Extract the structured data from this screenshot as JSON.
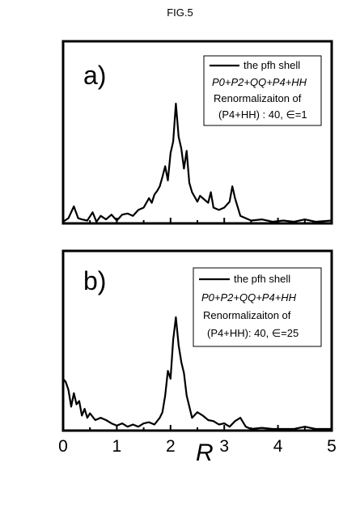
{
  "figure": {
    "title": "FIG.5"
  },
  "chart_data": [
    {
      "type": "line",
      "panel_label": "a)",
      "xlabel": "",
      "ylabel": "",
      "xlim": [
        0,
        5
      ],
      "legend_placement": "top-right",
      "legend": {
        "line1": "the pfh shell",
        "line2": "P0+P2+QQ+P4+HH",
        "line3": "Renormalizaiton of",
        "line4": "(P4+HH) : 40, ∈=1"
      },
      "series": [
        {
          "name": "the pfh shell",
          "x": [
            0.0,
            0.1,
            0.2,
            0.28,
            0.35,
            0.45,
            0.55,
            0.62,
            0.7,
            0.8,
            0.9,
            1.0,
            1.1,
            1.2,
            1.3,
            1.4,
            1.5,
            1.6,
            1.65,
            1.7,
            1.75,
            1.8,
            1.85,
            1.9,
            1.95,
            2.0,
            2.05,
            2.1,
            2.15,
            2.2,
            2.25,
            2.3,
            2.35,
            2.4,
            2.5,
            2.55,
            2.6,
            2.7,
            2.75,
            2.8,
            2.9,
            3.0,
            3.1,
            3.15,
            3.2,
            3.3,
            3.4,
            3.5,
            3.7,
            3.9,
            4.1,
            4.3,
            4.5,
            4.7,
            5.0
          ],
          "y": [
            0.0,
            0.03,
            0.13,
            0.03,
            0.02,
            0.01,
            0.08,
            0.0,
            0.05,
            0.02,
            0.06,
            0.01,
            0.06,
            0.07,
            0.05,
            0.1,
            0.12,
            0.2,
            0.16,
            0.23,
            0.26,
            0.3,
            0.38,
            0.47,
            0.35,
            0.58,
            0.68,
            1.0,
            0.72,
            0.62,
            0.45,
            0.6,
            0.33,
            0.25,
            0.17,
            0.22,
            0.2,
            0.16,
            0.25,
            0.12,
            0.1,
            0.12,
            0.17,
            0.3,
            0.2,
            0.05,
            0.03,
            0.01,
            0.02,
            0.0,
            0.01,
            0.0,
            0.02,
            0.0,
            0.01
          ]
        }
      ]
    },
    {
      "type": "line",
      "panel_label": "b)",
      "xlabel": "R",
      "ylabel": "",
      "xlim": [
        0,
        5
      ],
      "xticks": [
        0,
        1,
        2,
        3,
        4,
        5
      ],
      "legend_placement": "top-right",
      "legend": {
        "line1": "the pfh shell",
        "line2": "P0+P2+QQ+P4+HH",
        "line3": "Renormalizaiton of",
        "line4": "(P4+HH): 40, ∈=25"
      },
      "series": [
        {
          "name": "the pfh shell",
          "x": [
            0.0,
            0.05,
            0.1,
            0.15,
            0.2,
            0.25,
            0.3,
            0.35,
            0.4,
            0.45,
            0.5,
            0.6,
            0.7,
            0.8,
            0.9,
            1.0,
            1.1,
            1.2,
            1.3,
            1.4,
            1.5,
            1.6,
            1.7,
            1.8,
            1.85,
            1.9,
            1.95,
            2.0,
            2.05,
            2.1,
            2.15,
            2.2,
            2.25,
            2.3,
            2.4,
            2.5,
            2.6,
            2.7,
            2.8,
            2.9,
            3.0,
            3.1,
            3.2,
            3.3,
            3.4,
            3.5,
            3.7,
            3.9,
            4.1,
            4.3,
            4.5,
            4.7,
            5.0
          ],
          "y": [
            0.45,
            0.42,
            0.35,
            0.2,
            0.32,
            0.22,
            0.25,
            0.12,
            0.18,
            0.1,
            0.14,
            0.08,
            0.1,
            0.08,
            0.05,
            0.03,
            0.05,
            0.02,
            0.04,
            0.02,
            0.05,
            0.06,
            0.04,
            0.1,
            0.15,
            0.3,
            0.52,
            0.45,
            0.8,
            1.0,
            0.75,
            0.6,
            0.5,
            0.3,
            0.1,
            0.15,
            0.12,
            0.08,
            0.07,
            0.04,
            0.05,
            0.02,
            0.07,
            0.1,
            0.02,
            0.0,
            0.01,
            0.0,
            0.0,
            0.0,
            0.02,
            0.0,
            0.0
          ]
        }
      ]
    }
  ]
}
